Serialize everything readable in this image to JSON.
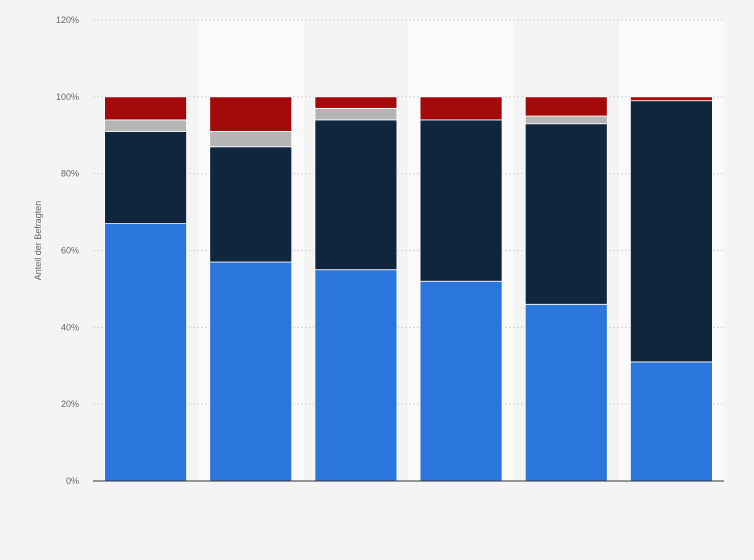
{
  "chart_data": {
    "type": "bar",
    "stacked": true,
    "ylabel": "Anteil der Befragten",
    "xlabel": "",
    "ylim": [
      0,
      120
    ],
    "ytick_values": [
      0,
      20,
      40,
      60,
      80,
      100,
      120
    ],
    "ytick_labels": [
      "0%",
      "20%",
      "40%",
      "60%",
      "80%",
      "100%",
      "120%"
    ],
    "categories": [
      "",
      "",
      "",
      "",
      "",
      ""
    ],
    "grid": true,
    "series": [
      {
        "color": "#2a76dd",
        "values": [
          67,
          57,
          55,
          52,
          46,
          31
        ]
      },
      {
        "color": "#0f263e",
        "values": [
          24,
          30,
          39,
          42,
          47,
          68
        ]
      },
      {
        "color": "#b5b5b5",
        "values": [
          3,
          4,
          3,
          0,
          2,
          0
        ]
      },
      {
        "color": "#a50a0a",
        "values": [
          6,
          9,
          3,
          6,
          5,
          1
        ]
      }
    ]
  }
}
